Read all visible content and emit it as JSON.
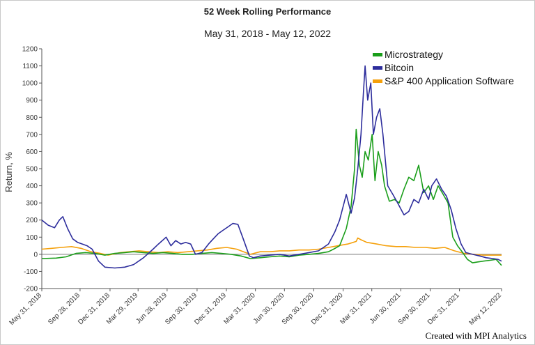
{
  "chart_data": {
    "type": "line",
    "title": "52 Week Rolling Performance",
    "subtitle": "May 31, 2018 - May 12, 2022",
    "ylabel": "Return, %",
    "ylim": [
      -200,
      1200
    ],
    "yticks": [
      -200,
      -100,
      0,
      100,
      200,
      300,
      400,
      500,
      600,
      700,
      800,
      900,
      1000,
      1100,
      1200
    ],
    "xlim": [
      "2018-05-31",
      "2022-05-12"
    ],
    "xticks": [
      {
        "date": "2018-05-31",
        "label": "May 31, 2018"
      },
      {
        "date": "2018-09-28",
        "label": "Sep 28, 2018"
      },
      {
        "date": "2018-12-31",
        "label": "Dec 31, 2018"
      },
      {
        "date": "2019-03-29",
        "label": "Mar 29, 2019"
      },
      {
        "date": "2019-06-28",
        "label": "Jun 28, 2019"
      },
      {
        "date": "2019-09-30",
        "label": "Sep 30, 2019"
      },
      {
        "date": "2019-12-31",
        "label": "Dec 31, 2019"
      },
      {
        "date": "2020-03-31",
        "label": "Mar 31, 2020"
      },
      {
        "date": "2020-06-30",
        "label": "Jun 30, 2020"
      },
      {
        "date": "2020-09-30",
        "label": "Sep 30, 2020"
      },
      {
        "date": "2020-12-31",
        "label": "Dec 31, 2020"
      },
      {
        "date": "2021-03-31",
        "label": "Mar 31, 2021"
      },
      {
        "date": "2021-06-30",
        "label": "Jun 30, 2021"
      },
      {
        "date": "2021-09-30",
        "label": "Sep 30, 2021"
      },
      {
        "date": "2021-12-31",
        "label": "Dec 31, 2021"
      },
      {
        "date": "2022-05-12",
        "label": "May 12, 2022"
      }
    ],
    "legend_position": "top-right",
    "series": [
      {
        "name": "Microstrategy",
        "color": "#1a9e1a",
        "points": [
          [
            "2018-05-31",
            -25
          ],
          [
            "2018-07-15",
            -22
          ],
          [
            "2018-08-15",
            -15
          ],
          [
            "2018-09-15",
            5
          ],
          [
            "2018-10-15",
            10
          ],
          [
            "2018-11-15",
            5
          ],
          [
            "2018-12-15",
            -5
          ],
          [
            "2019-01-15",
            5
          ],
          [
            "2019-02-15",
            10
          ],
          [
            "2019-03-15",
            15
          ],
          [
            "2019-04-15",
            10
          ],
          [
            "2019-05-15",
            5
          ],
          [
            "2019-06-15",
            10
          ],
          [
            "2019-07-15",
            5
          ],
          [
            "2019-08-15",
            0
          ],
          [
            "2019-09-15",
            0
          ],
          [
            "2019-10-15",
            5
          ],
          [
            "2019-11-15",
            10
          ],
          [
            "2019-12-15",
            5
          ],
          [
            "2020-01-15",
            0
          ],
          [
            "2020-02-15",
            -10
          ],
          [
            "2020-03-15",
            -25
          ],
          [
            "2020-04-15",
            -20
          ],
          [
            "2020-05-15",
            -15
          ],
          [
            "2020-06-15",
            -10
          ],
          [
            "2020-07-15",
            -15
          ],
          [
            "2020-08-15",
            -5
          ],
          [
            "2020-09-15",
            0
          ],
          [
            "2020-10-15",
            5
          ],
          [
            "2020-11-15",
            15
          ],
          [
            "2020-12-01",
            30
          ],
          [
            "2020-12-20",
            50
          ],
          [
            "2021-01-10",
            150
          ],
          [
            "2021-01-25",
            280
          ],
          [
            "2021-02-05",
            500
          ],
          [
            "2021-02-10",
            730
          ],
          [
            "2021-02-20",
            520
          ],
          [
            "2021-03-01",
            450
          ],
          [
            "2021-03-10",
            600
          ],
          [
            "2021-03-20",
            550
          ],
          [
            "2021-04-01",
            700
          ],
          [
            "2021-04-10",
            430
          ],
          [
            "2021-04-20",
            600
          ],
          [
            "2021-05-01",
            520
          ],
          [
            "2021-05-10",
            400
          ],
          [
            "2021-05-25",
            310
          ],
          [
            "2021-06-10",
            320
          ],
          [
            "2021-06-25",
            300
          ],
          [
            "2021-07-10",
            380
          ],
          [
            "2021-07-25",
            450
          ],
          [
            "2021-08-10",
            430
          ],
          [
            "2021-08-25",
            520
          ],
          [
            "2021-09-10",
            360
          ],
          [
            "2021-09-25",
            400
          ],
          [
            "2021-10-10",
            320
          ],
          [
            "2021-10-25",
            400
          ],
          [
            "2021-11-10",
            350
          ],
          [
            "2021-11-25",
            300
          ],
          [
            "2021-12-10",
            100
          ],
          [
            "2021-12-25",
            50
          ],
          [
            "2022-01-10",
            10
          ],
          [
            "2022-01-25",
            -30
          ],
          [
            "2022-02-10",
            -50
          ],
          [
            "2022-02-25",
            -45
          ],
          [
            "2022-03-15",
            -40
          ],
          [
            "2022-04-05",
            -35
          ],
          [
            "2022-04-25",
            -30
          ],
          [
            "2022-05-12",
            -65
          ]
        ]
      },
      {
        "name": "Bitcoin",
        "color": "#2d2d9c",
        "points": [
          [
            "2018-05-31",
            200
          ],
          [
            "2018-06-20",
            170
          ],
          [
            "2018-07-10",
            155
          ],
          [
            "2018-07-25",
            200
          ],
          [
            "2018-08-05",
            220
          ],
          [
            "2018-08-20",
            150
          ],
          [
            "2018-09-05",
            90
          ],
          [
            "2018-09-20",
            70
          ],
          [
            "2018-10-05",
            60
          ],
          [
            "2018-10-20",
            50
          ],
          [
            "2018-11-05",
            30
          ],
          [
            "2018-11-25",
            -40
          ],
          [
            "2018-12-15",
            -75
          ],
          [
            "2019-01-15",
            -80
          ],
          [
            "2019-02-15",
            -75
          ],
          [
            "2019-03-15",
            -60
          ],
          [
            "2019-04-15",
            -20
          ],
          [
            "2019-05-15",
            30
          ],
          [
            "2019-06-01",
            60
          ],
          [
            "2019-06-25",
            100
          ],
          [
            "2019-07-10",
            50
          ],
          [
            "2019-07-25",
            80
          ],
          [
            "2019-08-10",
            60
          ],
          [
            "2019-08-25",
            70
          ],
          [
            "2019-09-10",
            60
          ],
          [
            "2019-09-25",
            0
          ],
          [
            "2019-10-15",
            10
          ],
          [
            "2019-11-05",
            60
          ],
          [
            "2019-11-20",
            90
          ],
          [
            "2019-12-05",
            120
          ],
          [
            "2019-12-20",
            140
          ],
          [
            "2020-01-05",
            160
          ],
          [
            "2020-01-20",
            180
          ],
          [
            "2020-02-05",
            175
          ],
          [
            "2020-02-20",
            100
          ],
          [
            "2020-03-12",
            -10
          ],
          [
            "2020-03-25",
            -20
          ],
          [
            "2020-04-15",
            -10
          ],
          [
            "2020-05-15",
            -5
          ],
          [
            "2020-06-15",
            0
          ],
          [
            "2020-07-15",
            -10
          ],
          [
            "2020-08-15",
            0
          ],
          [
            "2020-09-15",
            10
          ],
          [
            "2020-10-15",
            20
          ],
          [
            "2020-11-15",
            60
          ],
          [
            "2020-12-05",
            130
          ],
          [
            "2020-12-20",
            200
          ],
          [
            "2021-01-10",
            350
          ],
          [
            "2021-01-25",
            240
          ],
          [
            "2021-02-05",
            330
          ],
          [
            "2021-02-15",
            500
          ],
          [
            "2021-02-25",
            700
          ],
          [
            "2021-03-05",
            950
          ],
          [
            "2021-03-10",
            1100
          ],
          [
            "2021-03-18",
            900
          ],
          [
            "2021-03-28",
            1000
          ],
          [
            "2021-04-05",
            700
          ],
          [
            "2021-04-15",
            800
          ],
          [
            "2021-04-25",
            850
          ],
          [
            "2021-05-05",
            700
          ],
          [
            "2021-05-20",
            400
          ],
          [
            "2021-06-05",
            350
          ],
          [
            "2021-06-20",
            300
          ],
          [
            "2021-07-10",
            230
          ],
          [
            "2021-07-25",
            250
          ],
          [
            "2021-08-10",
            320
          ],
          [
            "2021-08-25",
            300
          ],
          [
            "2021-09-10",
            380
          ],
          [
            "2021-09-25",
            320
          ],
          [
            "2021-10-05",
            400
          ],
          [
            "2021-10-20",
            440
          ],
          [
            "2021-11-05",
            380
          ],
          [
            "2021-11-20",
            340
          ],
          [
            "2021-12-05",
            260
          ],
          [
            "2021-12-20",
            150
          ],
          [
            "2022-01-05",
            60
          ],
          [
            "2022-01-20",
            10
          ],
          [
            "2022-02-10",
            0
          ],
          [
            "2022-03-05",
            -10
          ],
          [
            "2022-03-25",
            -20
          ],
          [
            "2022-04-15",
            -25
          ],
          [
            "2022-05-01",
            -30
          ],
          [
            "2022-05-12",
            -40
          ]
        ]
      },
      {
        "name": "S&P 400 Application Software",
        "color": "#f5a00a",
        "points": [
          [
            "2018-05-31",
            30
          ],
          [
            "2018-07-01",
            35
          ],
          [
            "2018-08-01",
            40
          ],
          [
            "2018-09-01",
            45
          ],
          [
            "2018-10-01",
            35
          ],
          [
            "2018-11-01",
            15
          ],
          [
            "2018-12-01",
            5
          ],
          [
            "2018-12-25",
            -5
          ],
          [
            "2019-02-01",
            10
          ],
          [
            "2019-03-01",
            15
          ],
          [
            "2019-04-01",
            20
          ],
          [
            "2019-05-01",
            15
          ],
          [
            "2019-06-01",
            10
          ],
          [
            "2019-07-01",
            15
          ],
          [
            "2019-08-01",
            10
          ],
          [
            "2019-09-01",
            15
          ],
          [
            "2019-10-01",
            20
          ],
          [
            "2019-11-01",
            25
          ],
          [
            "2019-12-01",
            35
          ],
          [
            "2020-01-01",
            40
          ],
          [
            "2020-02-01",
            30
          ],
          [
            "2020-03-15",
            0
          ],
          [
            "2020-04-15",
            15
          ],
          [
            "2020-05-15",
            15
          ],
          [
            "2020-06-15",
            20
          ],
          [
            "2020-07-15",
            20
          ],
          [
            "2020-08-15",
            25
          ],
          [
            "2020-09-15",
            25
          ],
          [
            "2020-10-15",
            30
          ],
          [
            "2020-11-15",
            40
          ],
          [
            "2020-12-15",
            50
          ],
          [
            "2021-01-15",
            60
          ],
          [
            "2021-02-10",
            75
          ],
          [
            "2021-02-15",
            95
          ],
          [
            "2021-02-25",
            85
          ],
          [
            "2021-03-15",
            70
          ],
          [
            "2021-04-15",
            60
          ],
          [
            "2021-05-15",
            50
          ],
          [
            "2021-06-15",
            45
          ],
          [
            "2021-07-15",
            45
          ],
          [
            "2021-08-15",
            40
          ],
          [
            "2021-09-15",
            40
          ],
          [
            "2021-10-15",
            35
          ],
          [
            "2021-11-15",
            40
          ],
          [
            "2021-12-15",
            20
          ],
          [
            "2022-01-15",
            5
          ],
          [
            "2022-02-15",
            0
          ],
          [
            "2022-03-15",
            -5
          ],
          [
            "2022-04-15",
            -5
          ],
          [
            "2022-05-12",
            -5
          ]
        ]
      }
    ]
  },
  "credit": "Created with MPI Analytics"
}
